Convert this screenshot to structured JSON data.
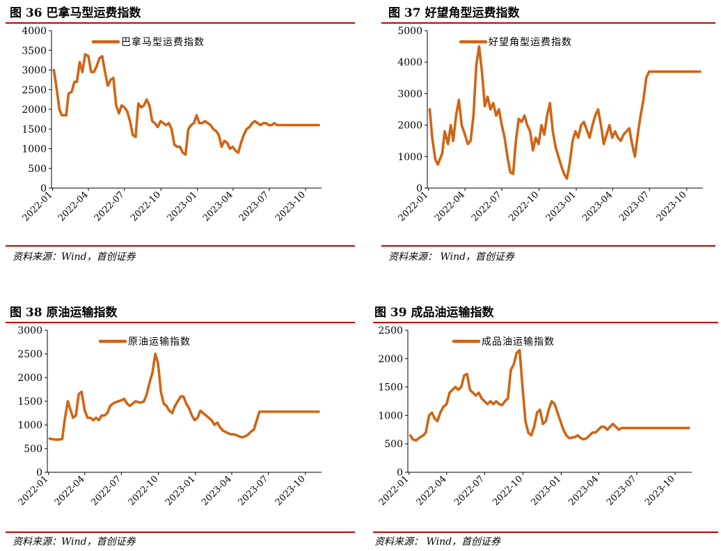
{
  "colors": {
    "line": "#d06414",
    "rule": "#c00000",
    "axis": "#000000"
  },
  "chart_data": [
    {
      "type": "line",
      "title": "图 36 巴拿马型运费指数",
      "source": "资料来源：Wind，首创证券",
      "series": [
        {
          "name": "巴拿马型运费指数",
          "x": [
            "2022-01-04",
            "2022-01-10",
            "2022-01-18",
            "2022-01-24",
            "2022-02-04",
            "2022-02-10",
            "2022-02-18",
            "2022-02-25",
            "2022-03-03",
            "2022-03-10",
            "2022-03-17",
            "2022-03-24",
            "2022-04-01",
            "2022-04-08",
            "2022-04-15",
            "2022-04-22",
            "2022-04-29",
            "2022-05-06",
            "2022-05-13",
            "2022-05-20",
            "2022-05-27",
            "2022-06-03",
            "2022-06-10",
            "2022-06-17",
            "2022-06-24",
            "2022-07-01",
            "2022-07-08",
            "2022-07-15",
            "2022-07-22",
            "2022-07-29",
            "2022-08-05",
            "2022-08-12",
            "2022-08-19",
            "2022-08-26",
            "2022-09-02",
            "2022-09-09",
            "2022-09-16",
            "2022-09-23",
            "2022-09-30",
            "2022-10-07",
            "2022-10-14",
            "2022-10-21",
            "2022-10-28",
            "2022-11-04",
            "2022-11-11",
            "2022-11-18",
            "2022-11-25",
            "2022-12-02",
            "2022-12-09",
            "2022-12-16",
            "2022-12-23",
            "2022-12-30",
            "2023-01-06",
            "2023-01-13",
            "2023-01-20",
            "2023-02-03",
            "2023-02-10",
            "2023-02-17",
            "2023-02-24",
            "2023-03-03",
            "2023-03-10",
            "2023-03-17",
            "2023-03-24",
            "2023-03-31",
            "2023-04-07",
            "2023-04-14",
            "2023-04-21",
            "2023-04-28",
            "2023-05-05",
            "2023-05-12",
            "2023-05-19",
            "2023-05-26",
            "2023-06-02",
            "2023-06-09",
            "2023-06-16",
            "2023-06-23",
            "2023-06-30",
            "2023-07-07",
            "2023-07-14",
            "2023-07-21",
            "2023-07-28",
            "2023-08-04",
            "2023-08-11",
            "2023-08-18",
            "2023-08-25",
            "2023-09-01",
            "2023-09-08",
            "2023-09-15",
            "2023-09-22",
            "2023-09-29",
            "2023-10-06",
            "2023-10-13",
            "2023-10-20",
            "2023-10-27",
            "2023-11-03"
          ],
          "y": [
            3000,
            2600,
            2000,
            1850,
            1850,
            2400,
            2450,
            2700,
            2700,
            3200,
            2950,
            3400,
            3350,
            2950,
            2950,
            3100,
            3300,
            3350,
            2950,
            2600,
            2750,
            2800,
            2100,
            1900,
            2100,
            2050,
            1950,
            1700,
            1350,
            1300,
            2150,
            2050,
            2100,
            2250,
            2100,
            1700,
            1650,
            1550,
            1700,
            1650,
            1600,
            1650,
            1500,
            1100,
            1050,
            1050,
            900,
            850,
            1500,
            1600,
            1650,
            1850,
            1650,
            1650,
            1700,
            1600,
            1500,
            1450,
            1350,
            1050,
            1200,
            1150,
            1000,
            1050,
            950,
            900,
            1150,
            1350,
            1500,
            1550,
            1650,
            1700,
            1650,
            1600,
            1650,
            1650,
            1600,
            1600,
            1650,
            1600,
            1600,
            1600,
            1600,
            1600,
            1600,
            1600,
            1600,
            1600,
            1600,
            1600,
            1600,
            1600,
            1600,
            1600,
            1600
          ]
        }
      ],
      "xticks": [
        "2022-01",
        "2022-04",
        "2022-07",
        "2022-10",
        "2023-01",
        "2023-04",
        "2023-07",
        "2023-10"
      ],
      "yticks": [
        0,
        500,
        1000,
        1500,
        2000,
        2500,
        3000,
        3500,
        4000
      ],
      "ylim": [
        0,
        4000
      ]
    },
    {
      "type": "line",
      "title": "图 37 好望角型运费指数",
      "source": "资料来源： Wind，首创证券",
      "series": [
        {
          "name": "好望角型运费指数",
          "x": [
            "2022-01-04",
            "2022-01-10",
            "2022-01-18",
            "2022-01-24",
            "2022-02-04",
            "2022-02-10",
            "2022-02-18",
            "2022-02-25",
            "2022-03-03",
            "2022-03-10",
            "2022-03-17",
            "2022-03-24",
            "2022-04-01",
            "2022-04-08",
            "2022-04-15",
            "2022-04-22",
            "2022-04-29",
            "2022-05-06",
            "2022-05-13",
            "2022-05-20",
            "2022-05-27",
            "2022-06-03",
            "2022-06-10",
            "2022-06-17",
            "2022-06-24",
            "2022-07-01",
            "2022-07-08",
            "2022-07-15",
            "2022-07-22",
            "2022-07-29",
            "2022-08-05",
            "2022-08-12",
            "2022-08-19",
            "2022-08-26",
            "2022-09-02",
            "2022-09-09",
            "2022-09-16",
            "2022-09-23",
            "2022-09-30",
            "2022-10-07",
            "2022-10-14",
            "2022-10-21",
            "2022-10-28",
            "2022-11-04",
            "2022-11-11",
            "2022-11-18",
            "2022-11-25",
            "2022-12-02",
            "2022-12-09",
            "2022-12-16",
            "2022-12-23",
            "2022-12-30",
            "2023-01-06",
            "2023-01-13",
            "2023-01-20",
            "2023-02-03",
            "2023-02-10",
            "2023-02-17",
            "2023-02-24",
            "2023-03-03",
            "2023-03-10",
            "2023-03-17",
            "2023-03-24",
            "2023-03-31",
            "2023-04-07",
            "2023-04-14",
            "2023-04-21",
            "2023-04-28",
            "2023-05-05",
            "2023-05-12",
            "2023-05-19",
            "2023-05-26",
            "2023-06-02",
            "2023-06-09",
            "2023-06-16",
            "2023-06-23",
            "2023-06-30",
            "2023-07-07",
            "2023-07-14",
            "2023-07-21",
            "2023-07-28",
            "2023-08-04",
            "2023-08-11",
            "2023-08-18",
            "2023-08-25",
            "2023-09-01",
            "2023-09-08",
            "2023-09-15",
            "2023-09-22",
            "2023-09-29",
            "2023-10-06",
            "2023-10-13",
            "2023-10-20",
            "2023-10-27",
            "2023-11-03"
          ],
          "y": [
            2500,
            1600,
            900,
            750,
            1100,
            1800,
            1400,
            2000,
            1500,
            2300,
            2800,
            2000,
            1700,
            1400,
            1500,
            2300,
            3900,
            4500,
            3700,
            2600,
            2900,
            2500,
            2700,
            2300,
            2500,
            2000,
            1600,
            1000,
            500,
            450,
            1500,
            2200,
            2100,
            2300,
            2000,
            1800,
            1200,
            1600,
            1400,
            2000,
            1700,
            2300,
            2700,
            1800,
            1300,
            1000,
            700,
            450,
            300,
            800,
            1500,
            1800,
            1600,
            2000,
            2100,
            1600,
            2000,
            2300,
            2500,
            2000,
            1400,
            1700,
            2000,
            1600,
            1800,
            1600,
            1500,
            1700,
            1800,
            1900,
            1400,
            1000,
            1700,
            2300,
            2800,
            3500,
            3700,
            3700,
            3700,
            3700,
            3700,
            3700,
            3700,
            3700,
            3700,
            3700,
            3700,
            3700,
            3700,
            3700,
            3700,
            3700,
            3700,
            3700,
            3700
          ]
        }
      ],
      "xticks": [
        "2022-01",
        "2022-04",
        "2022-07",
        "2022-10",
        "2023-01",
        "2023-04",
        "2023-07",
        "2023-10"
      ],
      "yticks": [
        0,
        1000,
        2000,
        3000,
        4000,
        5000
      ],
      "ylim": [
        0,
        5000
      ]
    },
    {
      "type": "line",
      "title": "图 38 原油运输指数",
      "source": "资料来源：Wind，首创证券",
      "series": [
        {
          "name": "原油运输指数",
          "x": [
            "2022-01-04",
            "2022-01-10",
            "2022-01-18",
            "2022-01-24",
            "2022-02-04",
            "2022-02-10",
            "2022-02-18",
            "2022-02-25",
            "2022-03-03",
            "2022-03-10",
            "2022-03-17",
            "2022-03-24",
            "2022-04-01",
            "2022-04-08",
            "2022-04-15",
            "2022-04-22",
            "2022-04-29",
            "2022-05-06",
            "2022-05-13",
            "2022-05-20",
            "2022-05-27",
            "2022-06-03",
            "2022-06-10",
            "2022-06-17",
            "2022-06-24",
            "2022-07-01",
            "2022-07-08",
            "2022-07-15",
            "2022-07-22",
            "2022-07-29",
            "2022-08-05",
            "2022-08-12",
            "2022-08-19",
            "2022-08-26",
            "2022-09-02",
            "2022-09-09",
            "2022-09-16",
            "2022-09-23",
            "2022-09-30",
            "2022-10-07",
            "2022-10-14",
            "2022-10-21",
            "2022-10-28",
            "2022-11-04",
            "2022-11-11",
            "2022-11-18",
            "2022-11-25",
            "2022-12-02",
            "2022-12-09",
            "2022-12-16",
            "2022-12-23",
            "2022-12-30",
            "2023-01-06",
            "2023-01-13",
            "2023-01-20",
            "2023-02-03",
            "2023-02-10",
            "2023-02-17",
            "2023-02-24",
            "2023-03-03",
            "2023-03-10",
            "2023-03-17",
            "2023-03-24",
            "2023-03-31",
            "2023-04-07",
            "2023-04-14",
            "2023-04-21",
            "2023-04-28",
            "2023-05-05",
            "2023-05-12",
            "2023-05-19",
            "2023-05-26",
            "2023-06-02",
            "2023-06-09",
            "2023-06-16",
            "2023-06-23",
            "2023-06-30",
            "2023-07-07",
            "2023-07-14",
            "2023-07-21",
            "2023-07-28",
            "2023-08-04",
            "2023-08-11",
            "2023-08-18",
            "2023-08-25",
            "2023-09-01",
            "2023-09-08",
            "2023-09-15",
            "2023-09-22",
            "2023-09-29",
            "2023-10-06",
            "2023-10-13",
            "2023-10-20",
            "2023-10-27",
            "2023-11-03"
          ],
          "y": [
            710,
            700,
            690,
            690,
            700,
            1100,
            1500,
            1300,
            1150,
            1200,
            1650,
            1700,
            1300,
            1150,
            1150,
            1100,
            1150,
            1100,
            1200,
            1200,
            1250,
            1400,
            1450,
            1480,
            1500,
            1520,
            1550,
            1450,
            1400,
            1450,
            1500,
            1480,
            1470,
            1500,
            1650,
            1900,
            2100,
            2500,
            2300,
            1700,
            1450,
            1400,
            1300,
            1250,
            1400,
            1500,
            1600,
            1600,
            1450,
            1350,
            1200,
            1100,
            1150,
            1300,
            1250,
            1150,
            1100,
            1000,
            1050,
            950,
            880,
            850,
            820,
            800,
            800,
            780,
            750,
            740,
            760,
            800,
            860,
            900,
            1100,
            1280,
            1280,
            1280,
            1280,
            1280,
            1280,
            1280,
            1280,
            1280,
            1280,
            1280,
            1280,
            1280,
            1280,
            1280,
            1280,
            1280,
            1280,
            1280,
            1280,
            1280,
            1280
          ]
        }
      ],
      "xticks": [
        "2022-01",
        "2022-04",
        "2022-07",
        "2022-10",
        "2023-01",
        "2023-04",
        "2023-07",
        "2023-10"
      ],
      "yticks": [
        0,
        500,
        1000,
        1500,
        2000,
        2500,
        3000
      ],
      "ylim": [
        0,
        3000
      ]
    },
    {
      "type": "line",
      "title": "图 39 成品油运输指数",
      "source": "资料来源： Wind，首创证券",
      "series": [
        {
          "name": "成品油运输指数",
          "x": [
            "2022-01-04",
            "2022-01-10",
            "2022-01-18",
            "2022-01-24",
            "2022-02-04",
            "2022-02-10",
            "2022-02-18",
            "2022-02-25",
            "2022-03-03",
            "2022-03-10",
            "2022-03-17",
            "2022-03-24",
            "2022-04-01",
            "2022-04-08",
            "2022-04-15",
            "2022-04-22",
            "2022-04-29",
            "2022-05-06",
            "2022-05-13",
            "2022-05-20",
            "2022-05-27",
            "2022-06-03",
            "2022-06-10",
            "2022-06-17",
            "2022-06-24",
            "2022-07-01",
            "2022-07-08",
            "2022-07-15",
            "2022-07-22",
            "2022-07-29",
            "2022-08-05",
            "2022-08-12",
            "2022-08-19",
            "2022-08-26",
            "2022-09-02",
            "2022-09-09",
            "2022-09-16",
            "2022-09-23",
            "2022-09-30",
            "2022-10-07",
            "2022-10-14",
            "2022-10-21",
            "2022-10-28",
            "2022-11-04",
            "2022-11-11",
            "2022-11-18",
            "2022-11-25",
            "2022-12-02",
            "2022-12-09",
            "2022-12-16",
            "2022-12-23",
            "2022-12-30",
            "2023-01-06",
            "2023-01-13",
            "2023-01-20",
            "2023-02-03",
            "2023-02-10",
            "2023-02-17",
            "2023-02-24",
            "2023-03-03",
            "2023-03-10",
            "2023-03-17",
            "2023-03-24",
            "2023-03-31",
            "2023-04-07",
            "2023-04-14",
            "2023-04-21",
            "2023-04-28",
            "2023-05-05",
            "2023-05-12",
            "2023-05-19",
            "2023-05-26",
            "2023-06-02",
            "2023-06-09",
            "2023-06-16",
            "2023-06-23",
            "2023-06-30",
            "2023-07-07",
            "2023-07-14",
            "2023-07-21",
            "2023-07-28",
            "2023-08-04",
            "2023-08-11",
            "2023-08-18",
            "2023-08-25",
            "2023-09-01",
            "2023-09-08",
            "2023-09-15",
            "2023-09-22",
            "2023-09-29",
            "2023-10-06",
            "2023-10-13",
            "2023-10-20",
            "2023-10-27",
            "2023-11-03"
          ],
          "y": [
            650,
            580,
            560,
            600,
            650,
            700,
            1000,
            1050,
            950,
            900,
            1050,
            1150,
            1200,
            1400,
            1450,
            1500,
            1450,
            1500,
            1700,
            1730,
            1450,
            1400,
            1350,
            1400,
            1300,
            1250,
            1200,
            1250,
            1200,
            1250,
            1200,
            1180,
            1250,
            1300,
            1800,
            1900,
            2100,
            2150,
            1500,
            900,
            700,
            650,
            800,
            1050,
            1100,
            850,
            900,
            1100,
            1250,
            1200,
            1050,
            900,
            750,
            650,
            600,
            620,
            650,
            600,
            580,
            600,
            650,
            700,
            700,
            750,
            800,
            800,
            750,
            800,
            850,
            800,
            750,
            780,
            780,
            780,
            780,
            780,
            780,
            780,
            780,
            780,
            780,
            780,
            780,
            780,
            780,
            780,
            780,
            780,
            780,
            780,
            780,
            780,
            780,
            780,
            780
          ]
        }
      ],
      "xticks": [
        "2022-01",
        "2022-04",
        "2022-07",
        "2022-10",
        "2023-01",
        "2023-04",
        "2023-07",
        "2023-10"
      ],
      "yticks": [
        0,
        500,
        1000,
        1500,
        2000,
        2500
      ],
      "ylim": [
        0,
        2500
      ]
    }
  ]
}
